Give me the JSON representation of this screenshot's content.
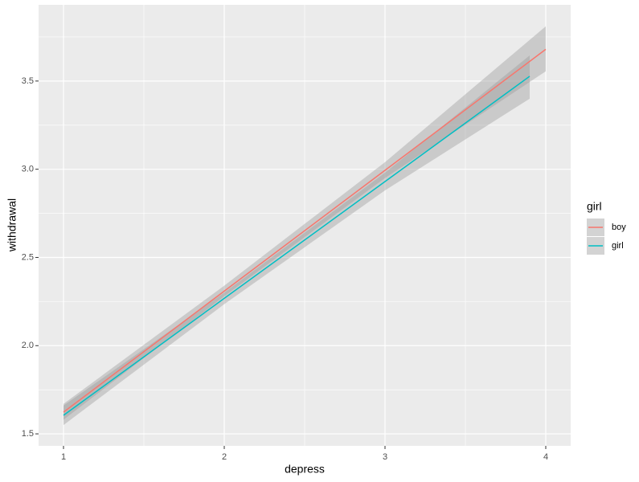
{
  "chart_data": {
    "type": "line",
    "x_label": "depress",
    "y_label": "withdrawal",
    "legend_title": "girl",
    "legend_position": "right",
    "xlim": [
      0.845,
      4.155
    ],
    "xticks": [
      1,
      2,
      3,
      4
    ],
    "ylim": [
      1.432,
      3.932
    ],
    "yticks": [
      {
        "value": 1.5,
        "label": "1.5"
      },
      {
        "value": 2.0,
        "label": "2.0"
      },
      {
        "value": 2.5,
        "label": "2.5"
      },
      {
        "value": 3.0,
        "label": "3.0"
      },
      {
        "value": 3.5,
        "label": "3.5"
      }
    ],
    "grid": true,
    "series": [
      {
        "name": "boy",
        "color": "#F8766D",
        "x": [
          1,
          2,
          3,
          4
        ],
        "values": [
          1.623,
          2.309,
          2.994,
          3.68
        ],
        "lower": [
          1.58,
          2.28,
          2.95,
          3.555
        ],
        "upper": [
          1.67,
          2.34,
          3.04,
          3.81
        ]
      },
      {
        "name": "girl",
        "color": "#00BFC4",
        "x": [
          1,
          2,
          3,
          3.9
        ],
        "values": [
          1.605,
          2.268,
          2.93,
          3.527
        ],
        "lower": [
          1.55,
          2.235,
          2.88,
          3.4
        ],
        "upper": [
          1.66,
          2.3,
          2.98,
          3.645
        ]
      }
    ]
  }
}
